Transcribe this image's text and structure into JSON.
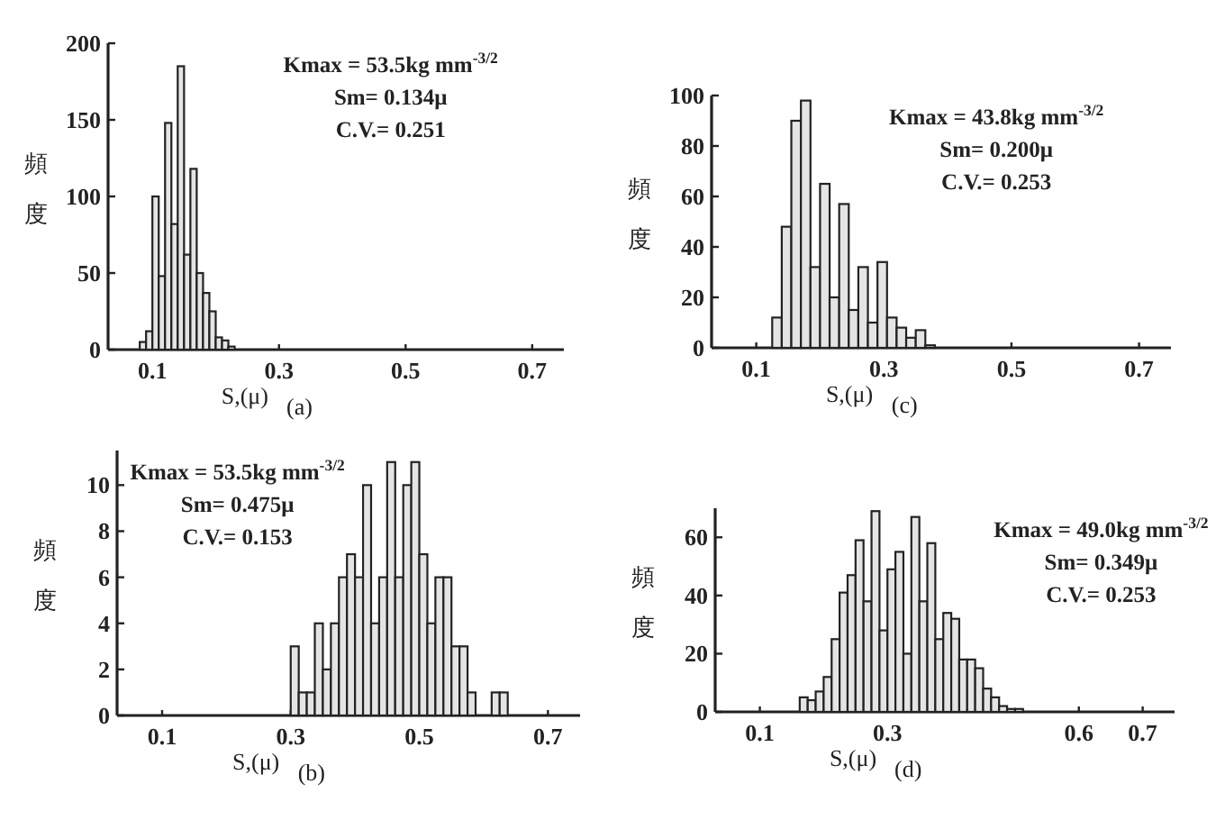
{
  "chart_data": [
    {
      "type": "histogram",
      "xlabel": "S,(μ)",
      "ylabel": "頻度",
      "color": "#e4e4e4",
      "bins": [
        0.08,
        0.09,
        0.1,
        0.11,
        0.12,
        0.13,
        0.14,
        0.15,
        0.16,
        0.17,
        0.18,
        0.19,
        0.2,
        0.21,
        0.22,
        0.23
      ],
      "values": [
        5,
        12,
        100,
        48,
        148,
        82,
        185,
        62,
        118,
        50,
        37,
        25,
        8,
        6,
        2
      ],
      "xlim": [
        0.03,
        0.75
      ],
      "xticks": [
        0.1,
        0.3,
        0.5,
        0.7
      ],
      "ylim": [
        0,
        200
      ],
      "yticks": [
        0,
        50,
        100,
        150,
        200
      ],
      "annotations": [
        "Kmax = 53.5kg mm$^{-3/2}$",
        "Sm= 0.134μ",
        "C.V.= 0.251",
        "(a)"
      ]
    },
    {
      "type": "histogram",
      "xlabel": "S,(μ)",
      "ylabel": "頻度",
      "color": "#e4e4e4",
      "bins": [
        0.125,
        0.14,
        0.155,
        0.17,
        0.185,
        0.2,
        0.215,
        0.23,
        0.245,
        0.26,
        0.275,
        0.29,
        0.305,
        0.32,
        0.335,
        0.35,
        0.365,
        0.38
      ],
      "values": [
        12,
        48,
        90,
        98,
        32,
        65,
        20,
        57,
        15,
        32,
        10,
        34,
        12,
        8,
        4,
        7,
        1
      ],
      "xlim": [
        0.03,
        0.75
      ],
      "xticks": [
        0.1,
        0.3,
        0.5,
        0.7
      ],
      "ylim": [
        0,
        100
      ],
      "yticks": [
        0,
        20,
        40,
        60,
        80,
        100
      ],
      "annotations": [
        "Kmax = 43.8kg mm$^{-3/2}$",
        "Sm= 0.200μ",
        "C.V.= 0.253",
        "(c)"
      ]
    },
    {
      "type": "histogram",
      "xlabel": "S,(μ)",
      "ylabel": "頻度",
      "color": "#e4e4e4",
      "bins": [
        0.3,
        0.3125,
        0.325,
        0.3375,
        0.35,
        0.3625,
        0.375,
        0.3875,
        0.4,
        0.4125,
        0.425,
        0.4375,
        0.45,
        0.4625,
        0.475,
        0.4875,
        0.5,
        0.5125,
        0.525,
        0.5375,
        0.55,
        0.5625,
        0.575,
        0.5875,
        0.6,
        0.6125,
        0.625,
        0.6375
      ],
      "values": [
        3,
        1,
        1,
        4,
        2,
        4,
        6,
        7,
        6,
        10,
        4,
        6,
        11,
        6,
        10,
        11,
        7,
        4,
        6,
        6,
        3,
        3,
        1,
        0,
        0,
        1,
        1
      ],
      "xlim": [
        0.03,
        0.75
      ],
      "xticks": [
        0.1,
        0.3,
        0.5,
        0.7
      ],
      "ylim": [
        0,
        11.5
      ],
      "yticks": [
        0,
        2,
        4,
        6,
        8,
        10
      ],
      "annotations": [
        "Kmax = 53.5kg mm$^{-3/2}$",
        "Sm= 0.475μ",
        "C.V.= 0.153",
        "(b)"
      ]
    },
    {
      "type": "histogram",
      "xlabel": "S,(μ)",
      "ylabel": "頻度",
      "color": "#e4e4e4",
      "bins": [
        0.1625,
        0.175,
        0.1875,
        0.2,
        0.2125,
        0.225,
        0.2375,
        0.25,
        0.2625,
        0.275,
        0.2875,
        0.3,
        0.3125,
        0.325,
        0.3375,
        0.35,
        0.3625,
        0.375,
        0.3875,
        0.4,
        0.4125,
        0.425,
        0.4375,
        0.45,
        0.4625,
        0.475,
        0.4875,
        0.5,
        0.5125
      ],
      "values": [
        5,
        4,
        7,
        12,
        25,
        41,
        47,
        59,
        38,
        69,
        28,
        49,
        55,
        20,
        67,
        38,
        58,
        25,
        34,
        32,
        18,
        18,
        15,
        8,
        5,
        2,
        1,
        1
      ],
      "xlim": [
        0.03,
        0.75
      ],
      "xticks": [
        0.1,
        0.3,
        0.6,
        0.7
      ],
      "ylim": [
        0,
        70
      ],
      "yticks": [
        0,
        20,
        40,
        60
      ],
      "annotations": [
        "Kmax = 49.0kg mm$^{-3/2}$",
        "Sm= 0.349μ",
        "C.V.= 0.253",
        "(d)"
      ]
    }
  ]
}
